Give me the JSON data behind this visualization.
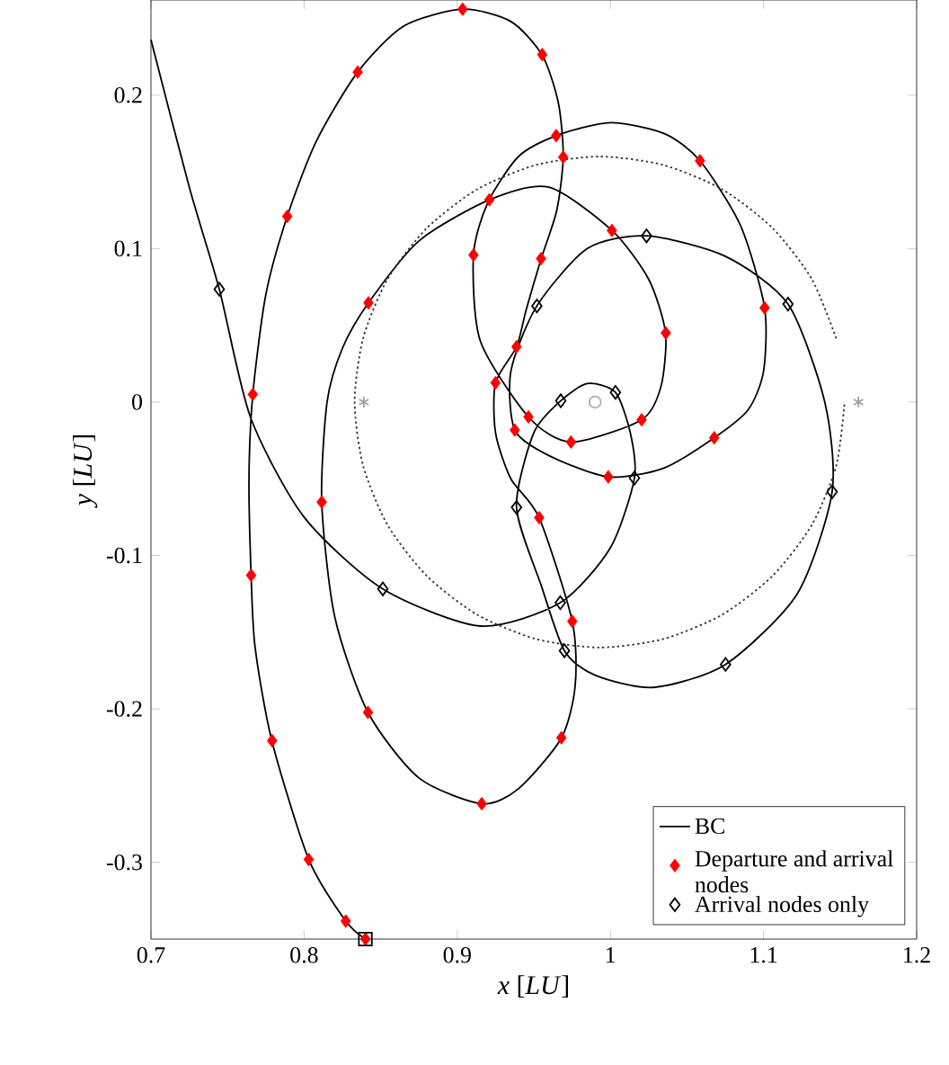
{
  "chart_data": {
    "type": "line",
    "xlabel": "*x* [*LU*]",
    "ylabel": "*y* [*LU*]",
    "xlim": [
      0.7,
      1.2
    ],
    "ylim": [
      -0.35,
      0.262
    ],
    "xticks": [
      0.7,
      0.8,
      0.9,
      1,
      1.1,
      1.2
    ],
    "yticks": [
      -0.3,
      -0.2,
      -0.1,
      0,
      0.1,
      0.2
    ],
    "legend": "bottom right",
    "grid": false,
    "series": [
      {
        "name": "BC",
        "color": "#000000",
        "line_style": "solid",
        "marker": "none",
        "x": [
          0.84,
          0.827,
          0.803,
          0.779,
          0.768,
          0.7654,
          0.764,
          0.7665,
          0.775,
          0.789,
          0.808,
          0.835,
          0.865,
          0.9035,
          0.935,
          0.9555,
          0.966,
          0.9692,
          0.965,
          0.9547,
          0.945,
          0.9387,
          0.925,
          0.925,
          0.935,
          0.9535,
          0.9751,
          0.977,
          0.968,
          0.94,
          0.916,
          0.875,
          0.8417,
          0.82,
          0.8115,
          0.815,
          0.825,
          0.842,
          0.875,
          0.921,
          0.96,
          1.001,
          1.025,
          1.036,
          1.033,
          1.0204,
          0.9743,
          0.9465,
          0.915,
          0.9106,
          0.92,
          0.94,
          0.9646,
          1.0,
          1.035,
          1.0585,
          1.085,
          1.1007,
          1.1,
          1.09,
          1.0678,
          1.035,
          0.9986,
          0.96,
          0.9376,
          0.935,
          0.952,
          0.985,
          1.0236,
          1.075,
          1.116,
          1.14,
          1.1448,
          1.122,
          1.0752,
          1.028,
          0.99,
          0.97,
          0.955,
          0.9387,
          0.95,
          0.9676,
          0.985,
          1.0033,
          1.013,
          1.0157,
          1.0,
          0.9673,
          0.915,
          0.8514,
          0.8,
          0.765,
          0.7446,
          0.725,
          0.7
        ],
        "values": [
          -0.35,
          -0.338,
          -0.298,
          -0.221,
          -0.16,
          -0.113,
          -0.05,
          0.005,
          0.07,
          0.121,
          0.17,
          0.215,
          0.245,
          0.256,
          0.248,
          0.226,
          0.195,
          0.16,
          0.125,
          0.093,
          0.06,
          0.036,
          0.0125,
          -0.02,
          -0.05,
          -0.0754,
          -0.1429,
          -0.185,
          -0.219,
          -0.252,
          -0.2618,
          -0.245,
          -0.2023,
          -0.14,
          -0.0652,
          0.0,
          0.035,
          0.0646,
          0.105,
          0.1318,
          0.14,
          0.1118,
          0.08,
          0.045,
          0.01,
          -0.0116,
          -0.0261,
          -0.0097,
          0.04,
          0.0958,
          0.13,
          0.16,
          0.1736,
          0.182,
          0.175,
          0.1572,
          0.115,
          0.0614,
          0.02,
          -0.005,
          -0.0233,
          -0.043,
          -0.0488,
          -0.035,
          -0.0183,
          0.02,
          0.0626,
          0.1,
          0.1083,
          0.095,
          0.0638,
          0.0,
          -0.0585,
          -0.125,
          -0.171,
          -0.186,
          -0.178,
          -0.1621,
          -0.12,
          -0.0687,
          -0.02,
          0.0008,
          0.012,
          0.0063,
          -0.02,
          -0.0496,
          -0.095,
          -0.1308,
          -0.146,
          -0.1218,
          -0.075,
          -0.01,
          0.0735,
          0.14,
          0.236
        ]
      },
      {
        "name": "Departure and arrival nodes",
        "type": "scatter",
        "color": "#ff0000",
        "marker": "diamond",
        "x": [
          0.9035,
          0.835,
          0.789,
          0.7665,
          0.842,
          0.921,
          0.9106,
          0.9387,
          0.925,
          0.9465,
          0.9376,
          0.9555,
          0.9646,
          0.9692,
          1.0585,
          1.001,
          0.9547,
          1.0362,
          1.1007,
          1.0204,
          0.9743,
          1.0678,
          0.9986,
          0.9535,
          0.9751,
          0.8115,
          0.7654,
          0.8417,
          0.7791,
          0.916,
          0.803,
          0.8272,
          0.8401,
          0.968
        ],
        "values": [
          0.256,
          0.215,
          0.121,
          0.005,
          0.0646,
          0.1318,
          0.0958,
          0.036,
          0.0125,
          -0.0097,
          -0.0183,
          0.2264,
          0.1736,
          0.1596,
          0.1572,
          0.1118,
          0.0934,
          0.045,
          0.0614,
          -0.0116,
          -0.0261,
          -0.0233,
          -0.0488,
          -0.0754,
          -0.1429,
          -0.0652,
          -0.1129,
          -0.2023,
          -0.2207,
          -0.2618,
          -0.2981,
          -0.3383,
          -0.35,
          -0.2188
        ]
      },
      {
        "name": "Arrival nodes only",
        "type": "scatter",
        "color": "#000000",
        "marker": "diamond",
        "x": [
          0.7446,
          1.0236,
          1.116,
          0.952,
          1.0033,
          0.9676,
          1.0157,
          0.9387,
          1.1448,
          0.9673,
          0.97,
          1.0752,
          0.8514
        ],
        "values": [
          0.0735,
          0.1083,
          0.0638,
          0.0626,
          0.0063,
          0.0008,
          -0.0496,
          -0.0687,
          -0.0585,
          -0.1308,
          -0.1621,
          -0.171,
          -0.1218
        ]
      },
      {
        "type": "line",
        "color": "#303030",
        "line_style": "dotted",
        "marker": "none",
        "x": [
          1.1475,
          1.1316,
          1.1061,
          1.073,
          1.0344,
          0.993,
          0.9516,
          0.913,
          0.8799,
          0.8544,
          0.8385,
          0.833,
          0.8385,
          0.8544,
          0.8799,
          0.913,
          0.9516,
          0.993,
          1.0344,
          1.073,
          1.1061,
          1.1316,
          1.1475,
          1.153
        ],
        "values": [
          0.0414,
          0.08,
          0.1131,
          0.1386,
          0.1545,
          0.16,
          0.1545,
          0.1386,
          0.1131,
          0.08,
          0.0414,
          0,
          -0.0414,
          -0.08,
          -0.1131,
          -0.1386,
          -0.1545,
          -0.16,
          -0.1545,
          -0.1386,
          -0.1131,
          -0.08,
          -0.0414,
          0
        ]
      },
      {
        "type": "scatter",
        "color": "#a0a0a0",
        "marker": "cross",
        "x": [
          0.839,
          1.162
        ],
        "values": [
          0,
          0
        ]
      },
      {
        "type": "scatter",
        "color": "#b0b0b0",
        "marker": "circle",
        "x": [
          0.99
        ],
        "values": [
          0
        ]
      },
      {
        "type": "scatter",
        "color": "#000000",
        "marker": "square",
        "x": [
          0.84
        ],
        "values": [
          -0.35
        ]
      }
    ]
  }
}
